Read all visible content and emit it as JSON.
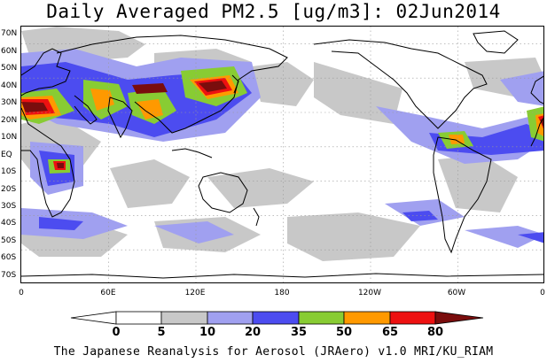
{
  "title": "Daily Averaged PM2.5 [ug/m3]: 02Jun2014",
  "footer": "The Japanese Reanalysis for Aerosol (JRAero) v1.0 MRI/KU_RIAM",
  "map": {
    "lon_range": [
      0,
      360
    ],
    "lat_range": [
      -75,
      75
    ],
    "grid": true,
    "lat_ticks": [
      "70N",
      "60N",
      "50N",
      "40N",
      "30N",
      "20N",
      "10N",
      "EQ",
      "10S",
      "20S",
      "30S",
      "40S",
      "50S",
      "60S",
      "70S"
    ],
    "lon_ticks": [
      "0",
      "60E",
      "120E",
      "180",
      "120W",
      "60W",
      "0"
    ]
  },
  "legend": {
    "labels": [
      "0",
      "5",
      "10",
      "20",
      "35",
      "50",
      "65",
      "80"
    ],
    "colors": {
      "below_0": "#ffffff",
      "0_5": "#ffffff",
      "5_10": "#c8c8c8",
      "10_20": "#a0a0f0",
      "20_35": "#4c4cf0",
      "35_50": "#88cc33",
      "50_65": "#ff9900",
      "65_80": "#ee1111",
      "above_80": "#7a0d0d"
    }
  }
}
